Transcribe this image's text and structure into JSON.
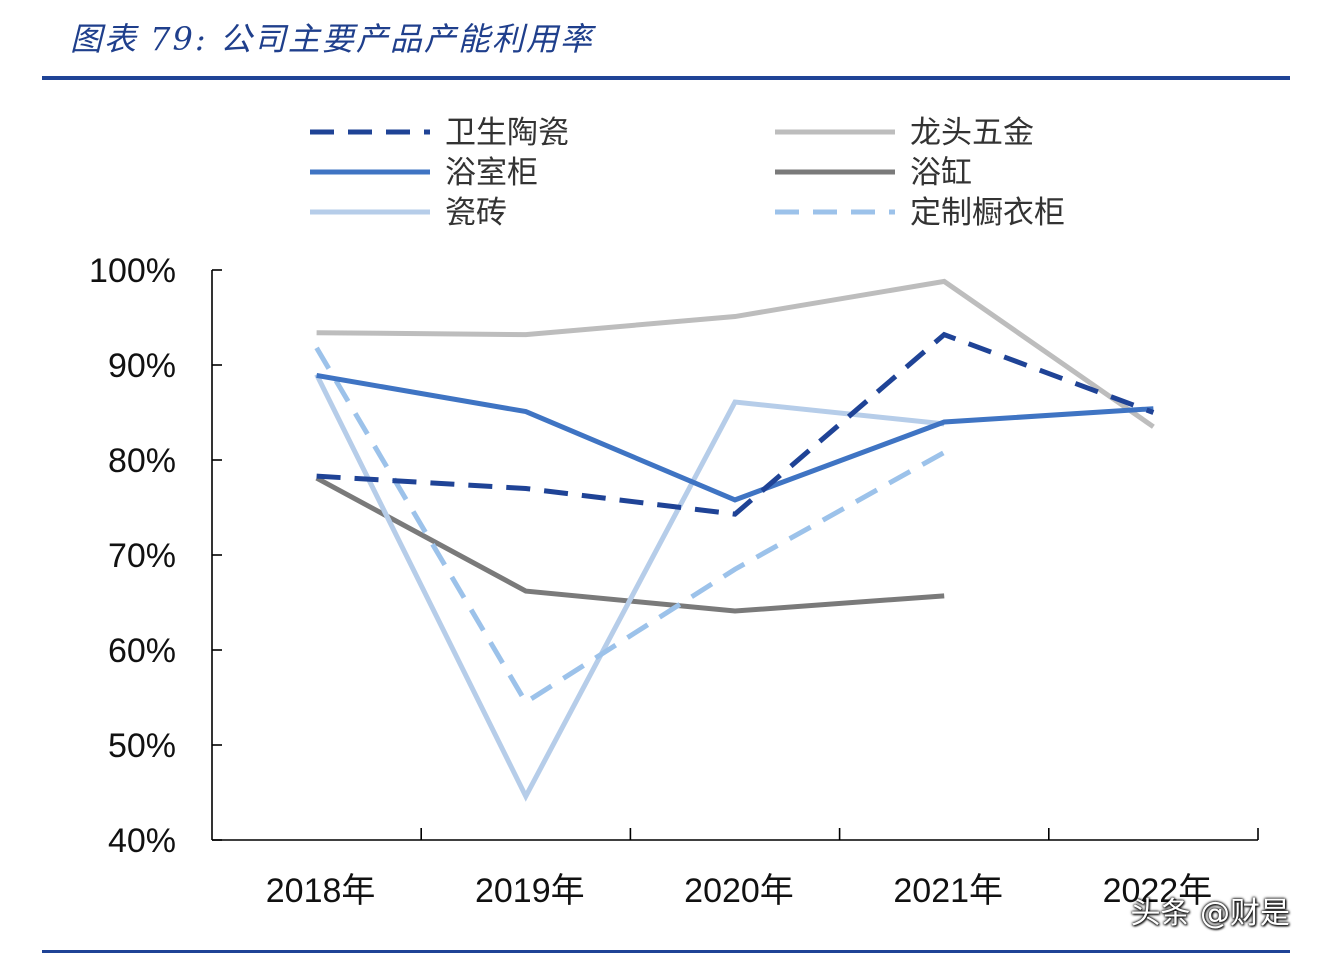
{
  "header": {
    "title": "图表 79:  公司主要产品产能利用率"
  },
  "watermark": "头条 @财是",
  "chart_data": {
    "type": "line",
    "title": "图表 79:  公司主要产品产能利用率",
    "categories": [
      "2018年",
      "2019年",
      "2020年",
      "2021年",
      "2022年"
    ],
    "y_ticks": [
      "40%",
      "50%",
      "60%",
      "70%",
      "80%",
      "90%",
      "100%"
    ],
    "ylim": [
      40,
      100
    ],
    "xlabel": "",
    "ylabel": "",
    "grid": false,
    "legend_position": "top",
    "series": [
      {
        "name": "卫生陶瓷",
        "values": [
          78.3,
          77.0,
          74.3,
          93.2,
          85.0
        ],
        "color": "#1f4396",
        "dash": true
      },
      {
        "name": "龙头五金",
        "values": [
          93.4,
          93.2,
          95.1,
          98.8,
          83.5
        ],
        "color": "#bdbdbd",
        "dash": false
      },
      {
        "name": "浴室柜",
        "values": [
          88.9,
          85.1,
          75.8,
          84.0,
          85.4
        ],
        "color": "#3f74c3",
        "dash": false
      },
      {
        "name": "浴缸",
        "values": [
          78.1,
          66.2,
          64.1,
          65.7,
          null
        ],
        "color": "#7a7a7a",
        "dash": false
      },
      {
        "name": "瓷砖",
        "values": [
          89.0,
          44.6,
          86.1,
          83.8,
          null
        ],
        "color": "#b6cde9",
        "dash": false
      },
      {
        "name": "定制橱衣柜",
        "values": [
          91.8,
          54.5,
          68.5,
          80.8,
          null
        ],
        "color": "#9cc2ea",
        "dash": true
      }
    ]
  }
}
